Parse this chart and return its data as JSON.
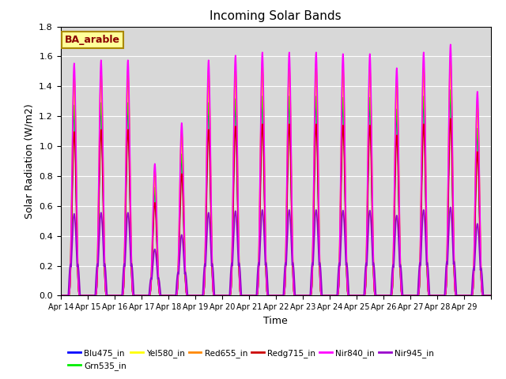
{
  "title": "Incoming Solar Bands",
  "xlabel": "Time",
  "ylabel": "Solar Radiation (W/m2)",
  "annotation": "BA_arable",
  "num_days": 16,
  "ylim": [
    0,
    1.8
  ],
  "yticks": [
    0.0,
    0.2,
    0.4,
    0.6,
    0.8,
    1.0,
    1.2,
    1.4,
    1.6,
    1.8
  ],
  "bg_color": "#d8d8d8",
  "series": [
    {
      "name": "Blu475_in",
      "color": "#0000ff",
      "lw": 1.2,
      "peak_scale": 0.84
    },
    {
      "name": "Grn535_in",
      "color": "#00ee00",
      "lw": 1.2,
      "peak_scale": 0.86
    },
    {
      "name": "Yel580_in",
      "color": "#ffff00",
      "lw": 1.2,
      "peak_scale": 1.0
    },
    {
      "name": "Red655_in",
      "color": "#ff8800",
      "lw": 1.2,
      "peak_scale": 0.98
    },
    {
      "name": "Redg715_in",
      "color": "#cc0000",
      "lw": 1.2,
      "peak_scale": 0.74
    },
    {
      "name": "Nir840_in",
      "color": "#ff00ff",
      "lw": 1.2,
      "peak_scale": 1.05
    },
    {
      "name": "Nir945_in",
      "color": "#9900cc",
      "lw": 1.2,
      "peak_scale": 0.37
    }
  ],
  "day_peaks": [
    1.48,
    1.5,
    1.5,
    0.84,
    1.1,
    1.5,
    1.53,
    1.55,
    1.55,
    1.55,
    1.54,
    1.54,
    1.45,
    1.55,
    1.6,
    1.3
  ],
  "x_tick_labels": [
    "Apr 14",
    "Apr 15",
    "Apr 16",
    "Apr 17",
    "Apr 18",
    "Apr 19",
    "Apr 20",
    "Apr 21",
    "Apr 22",
    "Apr 23",
    "Apr 24",
    "Apr 25",
    "Apr 26",
    "Apr 27",
    "Apr 28",
    "Apr 29"
  ]
}
